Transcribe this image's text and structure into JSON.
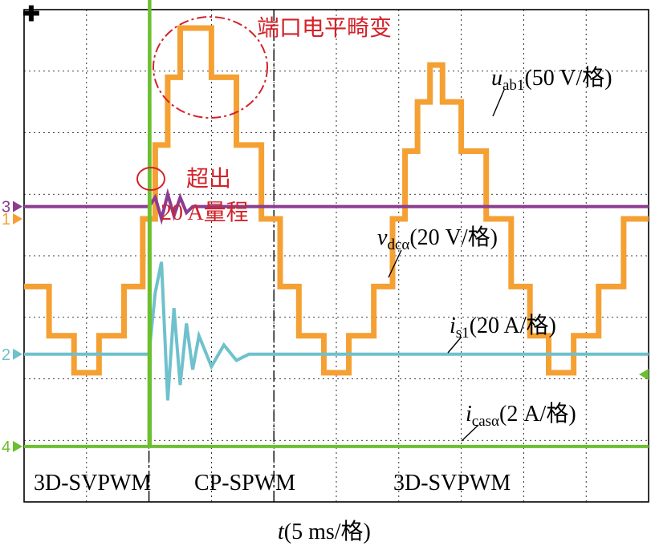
{
  "chart_data": {
    "type": "line",
    "title": "",
    "xlabel": "t(5 ms/格)",
    "xlabel_var": "t",
    "xlabel_unit": "(5 ms/格)",
    "x_unit_per_div": "5 ms",
    "xlim": [
      0,
      50
    ],
    "grid": true,
    "series": [
      {
        "id": "uab1",
        "var": "u",
        "sub": "ab1",
        "unit_text": "(50 V/格)",
        "name": "uab1(50 V/格)",
        "channel": "1",
        "color": "#f5a033",
        "baseline_div": 4.6,
        "v_per_div": 50,
        "x": [
          0,
          2,
          4,
          6,
          8,
          9.5,
          10.5,
          11.5,
          12.5,
          13.5,
          15,
          17,
          19,
          20.5,
          22,
          24,
          26,
          28,
          29.5,
          30.5,
          31.5,
          32.5,
          33.5,
          35,
          37,
          39,
          40.5,
          42,
          44,
          46,
          48,
          50
        ],
        "values": [
          -55,
          -95,
          -125,
          -95,
          -55,
          0,
          60,
          115,
          155,
          155,
          115,
          60,
          0,
          -55,
          -95,
          -125,
          -95,
          -55,
          0,
          55,
          95,
          125,
          95,
          55,
          0,
          -55,
          -95,
          -125,
          -95,
          -55,
          0,
          0
        ],
        "annotation": "端口电平畸变"
      },
      {
        "id": "vdca",
        "var": "v",
        "sub": "dcα",
        "unit_text": "(20 V/格)",
        "name": "vdcα(20 V/格)",
        "channel": "2",
        "color": "#6fc1cc",
        "baseline_div": 2.4,
        "v_per_div": 20,
        "x": [
          0,
          10,
          10.5,
          11,
          11.5,
          12,
          12.5,
          13,
          13.5,
          14,
          15,
          16,
          17,
          18,
          50
        ],
        "values": [
          0,
          0,
          20,
          30,
          -15,
          15,
          -10,
          10,
          -5,
          6,
          -4,
          3,
          -2,
          0,
          0
        ]
      },
      {
        "id": "is1",
        "var": "i",
        "sub": "s1",
        "unit_text": "(20 A/格)",
        "name": "is1(20 A/格)",
        "channel": "3",
        "color": "#8b3d8f",
        "baseline_div": 4.8,
        "v_per_div": 20,
        "x": [
          0,
          10,
          10.5,
          11,
          11.5,
          12,
          12.5,
          13,
          13.5,
          14,
          50
        ],
        "values": [
          0,
          0,
          3,
          -4,
          4,
          -3,
          3,
          -2,
          0,
          0,
          0
        ]
      },
      {
        "id": "icasa",
        "var": "i",
        "sub": "casα",
        "unit_text": "(2 A/格)",
        "name": "icasα(2 A/格)",
        "channel": "4",
        "color": "#6cbf2f",
        "baseline_div": 0.9,
        "v_per_div": 2,
        "x": [
          0,
          10,
          10.05,
          10.1,
          50
        ],
        "values": [
          0,
          0,
          20,
          0,
          0
        ],
        "annotation": "超出20 A量程"
      }
    ],
    "regions": [
      {
        "label": "3D-SVPWM",
        "from": 0,
        "to": 10
      },
      {
        "label": "CP-SPWM",
        "from": 10,
        "to": 20
      },
      {
        "label": "3D-SVPWM",
        "from": 20,
        "to": 50
      }
    ],
    "annotations": [
      {
        "text": "端口电平畸变",
        "color": "#d2232a"
      },
      {
        "text1": "超出",
        "text2": "20 A量程",
        "color": "#d2232a"
      }
    ]
  }
}
